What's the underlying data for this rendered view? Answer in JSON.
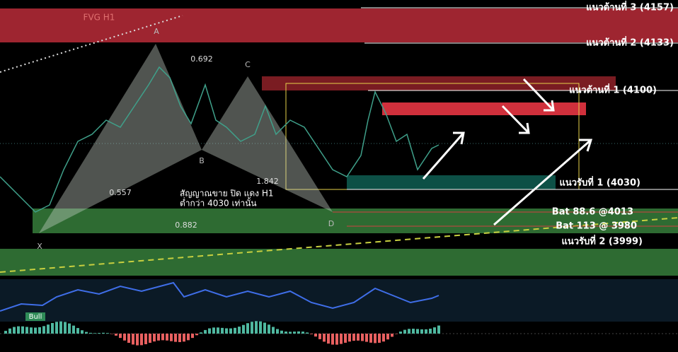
{
  "chart": {
    "fvg": "FVG H1",
    "points": {
      "a": "A",
      "b": "B",
      "c": "C",
      "d": "D",
      "x": "X"
    },
    "ratios": {
      "ab": "0.692",
      "bc": "1.842",
      "xb": "0.557",
      "xd": "0.882"
    },
    "note": [
      "สัญญาณขาย ปิด แดง H1",
      "ต่ำกว่า 4030 เท่านั้น"
    ],
    "levels": {
      "r3": "แนวต้านที่ 3 (4157)",
      "r2": "แนวต้านที่ 2 (4133)",
      "r1": "แนวต้านที่ 1 (4100)",
      "s1": "แนวรับที่ 1 (4030)",
      "bat886": "Bat 88.6 @4013",
      "bat113": "Bat 113 @ 3980",
      "s2": "แนวรับที่ 2 (3999)"
    },
    "oscillator_tag": "Bull"
  }
}
